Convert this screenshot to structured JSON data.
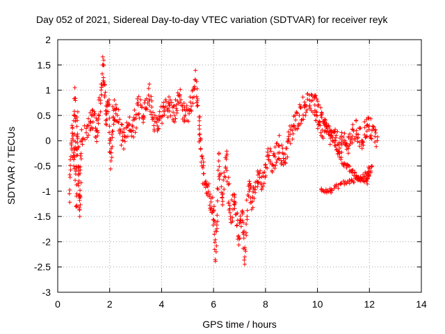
{
  "chart_data": {
    "type": "scatter",
    "title": "Day 052 of 2021, Sidereal Day-to-day VTEC variation (SDTVAR) for receiver reyk",
    "xlabel": "GPS time / hours",
    "ylabel": "SDTVAR / TECUs",
    "xlim": [
      0,
      14
    ],
    "ylim": [
      -3,
      2
    ],
    "xticks": [
      0,
      2,
      4,
      6,
      8,
      10,
      12,
      14
    ],
    "yticks": [
      -3,
      -2.5,
      -2,
      -1.5,
      -1,
      -0.5,
      0,
      0.5,
      1,
      1.5,
      2
    ],
    "grid": true,
    "marker": "+",
    "series_color": "#ff0000",
    "series": [
      {
        "name": "SDTVAR reyk",
        "trend": [
          [
            0.45,
            -1.05
          ],
          [
            0.55,
            0.3
          ],
          [
            0.62,
            -0.5
          ],
          [
            0.66,
            1.05
          ],
          [
            0.7,
            -1.3
          ],
          [
            0.75,
            0.4
          ],
          [
            0.8,
            -0.6
          ],
          [
            0.85,
            -1.5
          ],
          [
            0.9,
            0.0
          ],
          [
            1.2,
            0.3
          ],
          [
            1.35,
            0.5
          ],
          [
            1.5,
            0.2
          ],
          [
            1.65,
            0.8
          ],
          [
            1.75,
            1.5
          ],
          [
            1.85,
            0.4
          ],
          [
            1.95,
            0.7
          ],
          [
            2.05,
            -0.4
          ],
          [
            2.15,
            0.6
          ],
          [
            2.3,
            0.5
          ],
          [
            2.5,
            0.0
          ],
          [
            2.7,
            0.3
          ],
          [
            2.9,
            0.2
          ],
          [
            3.1,
            0.7
          ],
          [
            3.3,
            0.5
          ],
          [
            3.5,
            0.9
          ],
          [
            3.7,
            0.3
          ],
          [
            3.9,
            0.4
          ],
          [
            4.1,
            0.6
          ],
          [
            4.3,
            0.7
          ],
          [
            4.5,
            0.5
          ],
          [
            4.7,
            0.9
          ],
          [
            4.9,
            0.4
          ],
          [
            5.1,
            0.6
          ],
          [
            5.3,
            1.2
          ],
          [
            5.45,
            0.3
          ],
          [
            5.55,
            -0.5
          ],
          [
            5.7,
            -0.8
          ],
          [
            5.85,
            -1.1
          ],
          [
            6.0,
            -1.4
          ],
          [
            6.1,
            -2.2
          ],
          [
            6.2,
            -0.4
          ],
          [
            6.35,
            -1.2
          ],
          [
            6.5,
            -0.3
          ],
          [
            6.65,
            -1.5
          ],
          [
            6.8,
            -1.2
          ],
          [
            6.95,
            -1.9
          ],
          [
            7.1,
            -1.4
          ],
          [
            7.2,
            -2.3
          ],
          [
            7.35,
            -0.9
          ],
          [
            7.5,
            -1.2
          ],
          [
            7.7,
            -0.6
          ],
          [
            7.9,
            -0.9
          ],
          [
            8.1,
            -0.3
          ],
          [
            8.3,
            -0.5
          ],
          [
            8.5,
            -0.1
          ],
          [
            8.7,
            -0.4
          ],
          [
            8.9,
            0.0
          ],
          [
            9.1,
            0.3
          ],
          [
            9.3,
            0.5
          ],
          [
            9.5,
            0.7
          ],
          [
            9.7,
            0.8
          ],
          [
            9.9,
            0.6
          ],
          [
            10.1,
            0.3
          ],
          [
            10.3,
            0.2
          ],
          [
            10.5,
            0.1
          ],
          [
            10.7,
            0.0
          ],
          [
            10.9,
            -0.05
          ],
          [
            11.1,
            -0.1
          ],
          [
            11.3,
            0.05
          ],
          [
            11.5,
            0.2
          ],
          [
            11.7,
            0.0
          ],
          [
            11.9,
            0.3
          ],
          [
            12.1,
            0.2
          ],
          [
            12.3,
            0.0
          ]
        ],
        "secondary_trend": [
          [
            9.9,
            0.9
          ],
          [
            10.3,
            0.35
          ],
          [
            10.7,
            -0.1
          ],
          [
            11.0,
            -0.45
          ],
          [
            11.3,
            -0.6
          ],
          [
            11.6,
            -0.75
          ],
          [
            11.9,
            -0.8
          ],
          [
            12.1,
            -0.5
          ]
        ],
        "low_branch": [
          [
            10.15,
            -0.95
          ],
          [
            10.5,
            -1.0
          ],
          [
            10.9,
            -0.85
          ],
          [
            11.3,
            -0.8
          ],
          [
            11.7,
            -0.75
          ],
          [
            12.0,
            -0.55
          ]
        ]
      }
    ]
  }
}
